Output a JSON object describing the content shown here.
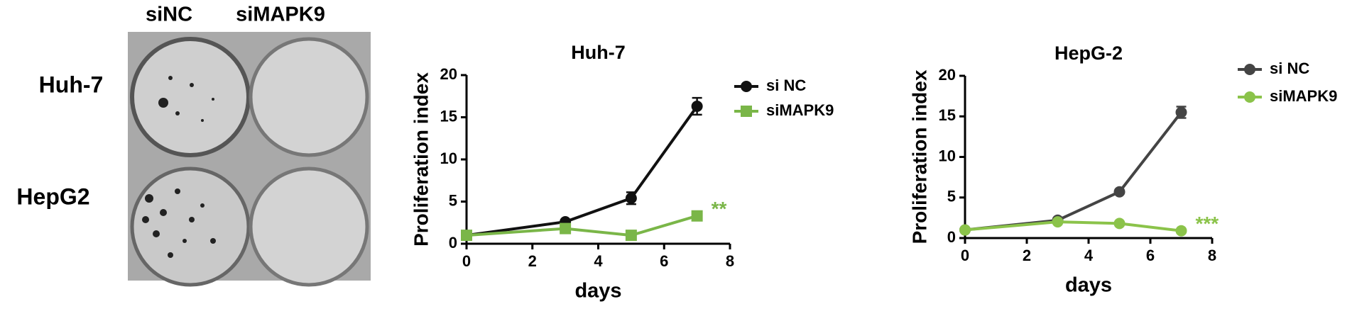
{
  "image_panel": {
    "columns": [
      "siNC",
      "siMAPK9"
    ],
    "rows": [
      "Huh-7",
      "HepG2"
    ]
  },
  "chart_data": [
    {
      "type": "line",
      "title": "Huh-7",
      "xlabel": "days",
      "ylabel": "Proliferation index",
      "x": [
        0,
        3,
        5,
        7
      ],
      "xlim": [
        0,
        8
      ],
      "xticks": [
        0,
        2,
        4,
        6,
        8
      ],
      "ylim": [
        0,
        20
      ],
      "yticks": [
        0,
        5,
        10,
        15,
        20
      ],
      "series": [
        {
          "name": "si NC",
          "color": "#111111",
          "marker": "circle",
          "values": [
            1,
            2.6,
            5.4,
            16.3
          ],
          "errors": [
            0.2,
            0.2,
            0.7,
            1.0
          ]
        },
        {
          "name": "siMAPK9",
          "color": "#7ab648",
          "marker": "square",
          "values": [
            1,
            1.8,
            1,
            3.3
          ],
          "errors": [
            0.1,
            0.2,
            0.2,
            0.3
          ]
        }
      ],
      "annotation": {
        "text": "**",
        "color": "#7ab648"
      }
    },
    {
      "type": "line",
      "title": "HepG-2",
      "xlabel": "days",
      "ylabel": "Proliferation index",
      "x": [
        0,
        3,
        5,
        7
      ],
      "xlim": [
        0,
        8
      ],
      "xticks": [
        0,
        2,
        4,
        6,
        8
      ],
      "ylim": [
        0,
        20
      ],
      "yticks": [
        0,
        5,
        10,
        15,
        20
      ],
      "series": [
        {
          "name": "si NC",
          "color": "#444444",
          "marker": "circle",
          "values": [
            1,
            2.2,
            5.7,
            15.5
          ],
          "errors": [
            0.1,
            0.2,
            0.2,
            0.7
          ]
        },
        {
          "name": "siMAPK9",
          "color": "#8bc34a",
          "marker": "circle",
          "values": [
            1,
            2,
            1.8,
            0.9
          ],
          "errors": [
            0.1,
            0.1,
            0.1,
            0.1
          ]
        }
      ],
      "annotation": {
        "text": "***",
        "color": "#8bc34a"
      }
    }
  ]
}
